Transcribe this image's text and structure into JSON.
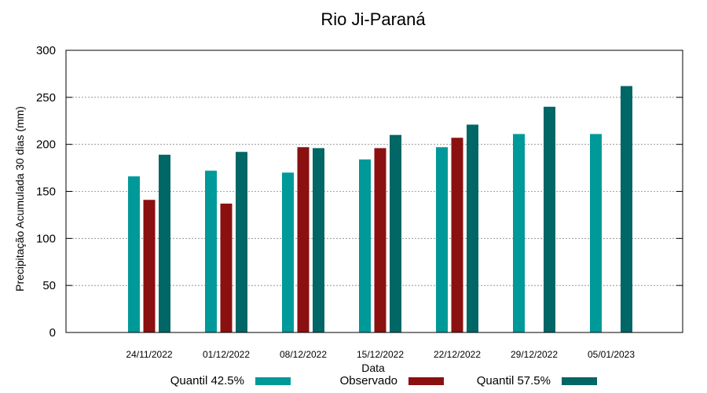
{
  "chart_data": {
    "type": "bar",
    "title": "Rio Ji-Paraná",
    "xlabel": "Data",
    "ylabel": "Precipitação Acumulada 30 dias (mm)",
    "ylim": [
      0,
      300
    ],
    "yticks": [
      0,
      50,
      100,
      150,
      200,
      250,
      300
    ],
    "grid": true,
    "legend_position": "bottom",
    "categories": [
      "24/11/2022",
      "01/12/2022",
      "08/12/2022",
      "15/12/2022",
      "22/12/2022",
      "29/12/2022",
      "05/01/2023"
    ],
    "series": [
      {
        "name": "Quantil 42.5%",
        "color": "#009999",
        "values": [
          166,
          172,
          170,
          184,
          197,
          211,
          211
        ]
      },
      {
        "name": "Observado",
        "color": "#8b1010",
        "values": [
          141,
          137,
          197,
          196,
          207,
          null,
          null
        ]
      },
      {
        "name": "Quantil 57.5%",
        "color": "#006666",
        "values": [
          189,
          192,
          196,
          210,
          221,
          240,
          262
        ]
      }
    ]
  }
}
